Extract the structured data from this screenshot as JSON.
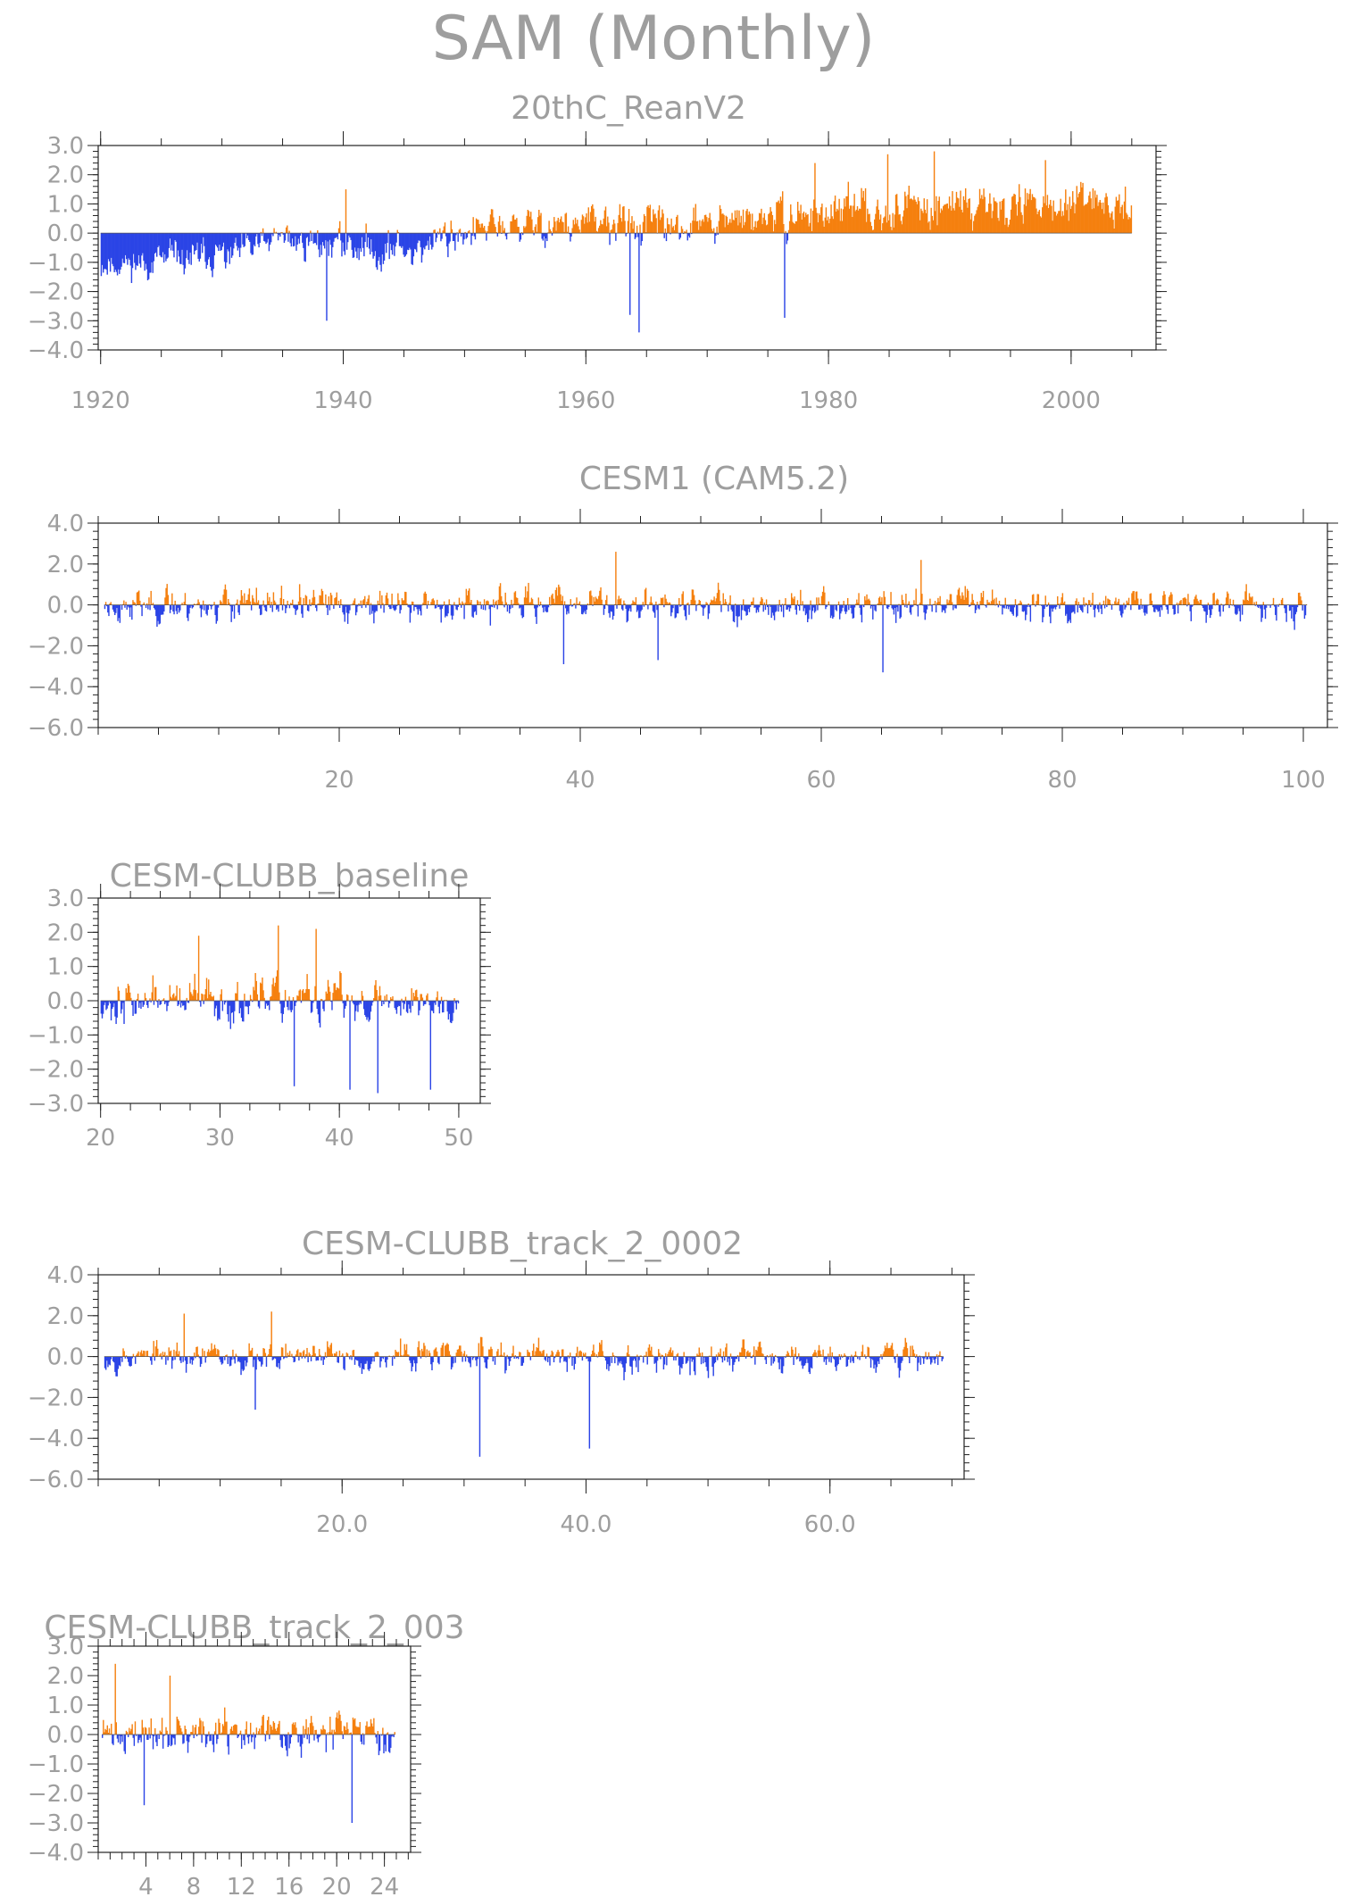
{
  "title": "SAM (Monthly)",
  "colors": {
    "positive": "#f5800f",
    "negative": "#2b44e6",
    "frame": "#222222",
    "text": "#9e9e9e"
  },
  "chart_data": [
    {
      "type": "bar",
      "title": "20thC_ReanV2",
      "xlim": [
        1919.8,
        2007
      ],
      "ylim": [
        -4.0,
        3.0
      ],
      "yticks": [
        3.0,
        2.0,
        1.0,
        0.0,
        -1.0,
        -2.0,
        -3.0,
        -4.0
      ],
      "ytick_labels": [
        "3.0",
        "2.0",
        "1.0",
        "0.0",
        "−1.0",
        "−2.0",
        "−3.0",
        "−4.0"
      ],
      "xticks": [
        1920,
        1940,
        1960,
        1980,
        2000
      ],
      "xtick_labels": [
        "1920",
        "1940",
        "1960",
        "1980",
        "2000"
      ],
      "x_range": [
        1920,
        2005
      ],
      "series_profile": [
        {
          "x": 1920,
          "mean": -1.1,
          "amp": 0.6
        },
        {
          "x": 1930,
          "mean": -0.8,
          "amp": 0.8
        },
        {
          "x": 1935,
          "mean": -0.2,
          "amp": 0.8
        },
        {
          "x": 1945,
          "mean": -0.6,
          "amp": 0.9
        },
        {
          "x": 1950,
          "mean": 0.1,
          "amp": 0.8
        },
        {
          "x": 1960,
          "mean": 0.3,
          "amp": 0.9
        },
        {
          "x": 1970,
          "mean": 0.3,
          "amp": 0.9
        },
        {
          "x": 1980,
          "mean": 0.7,
          "amp": 0.9
        },
        {
          "x": 1990,
          "mean": 1.0,
          "amp": 0.9
        },
        {
          "x": 2005,
          "mean": 0.9,
          "amp": 0.8
        }
      ],
      "extremes": [
        {
          "x": 1940.2,
          "y": 1.5
        },
        {
          "x": 1938.6,
          "y": -3.0
        },
        {
          "x": 1963.6,
          "y": -2.8
        },
        {
          "x": 1964.3,
          "y": -3.4
        },
        {
          "x": 1976.3,
          "y": -2.9
        },
        {
          "x": 1978.8,
          "y": 2.4
        },
        {
          "x": 1984.8,
          "y": 2.7
        },
        {
          "x": 1988.7,
          "y": 2.8
        },
        {
          "x": 1997.8,
          "y": 2.5
        }
      ],
      "bars_per_unit": 12,
      "seed": 11
    },
    {
      "type": "bar",
      "title": "CESM1 (CAM5.2)",
      "xlim": [
        0,
        102
      ],
      "ylim": [
        -6.0,
        4.0
      ],
      "yticks": [
        4.0,
        2.0,
        0.0,
        -2.0,
        -4.0,
        -6.0
      ],
      "ytick_labels": [
        "4.0",
        "2.0",
        "0.0",
        "−2.0",
        "−4.0",
        "−6.0"
      ],
      "xticks": [
        20,
        40,
        60,
        80,
        100
      ],
      "xtick_labels": [
        "20",
        "40",
        "60",
        "80",
        "100"
      ],
      "x_range": [
        0.5,
        100.3
      ],
      "series_profile": [
        {
          "x": 0,
          "mean": 0.0,
          "amp": 1.1
        },
        {
          "x": 100,
          "mean": 0.0,
          "amp": 1.1
        }
      ],
      "extremes": [
        {
          "x": 42.9,
          "y": 2.6
        },
        {
          "x": 68.2,
          "y": 2.2
        },
        {
          "x": 38.6,
          "y": -2.9
        },
        {
          "x": 65.1,
          "y": -3.3
        },
        {
          "x": 46.4,
          "y": -2.7
        }
      ],
      "bars_per_unit": 12,
      "seed": 23
    },
    {
      "type": "bar",
      "title": "CESM-CLUBB_baseline",
      "xlim": [
        19.8,
        51.8
      ],
      "ylim": [
        -3.0,
        3.0
      ],
      "yticks": [
        3.0,
        2.0,
        1.0,
        0.0,
        -1.0,
        -2.0,
        -3.0
      ],
      "ytick_labels": [
        "3.0",
        "2.0",
        "1.0",
        "0.0",
        "−1.0",
        "−2.0",
        "−3.0"
      ],
      "xticks": [
        20,
        30,
        40,
        50
      ],
      "xtick_labels": [
        "20",
        "30",
        "40",
        "50"
      ],
      "x_range": [
        20,
        50
      ],
      "series_profile": [
        {
          "x": 20,
          "mean": 0.0,
          "amp": 0.8
        },
        {
          "x": 50,
          "mean": 0.0,
          "amp": 0.8
        }
      ],
      "extremes": [
        {
          "x": 28.2,
          "y": 1.9
        },
        {
          "x": 34.8,
          "y": 2.2
        },
        {
          "x": 38.0,
          "y": 2.1
        },
        {
          "x": 36.2,
          "y": -2.5
        },
        {
          "x": 40.8,
          "y": -2.6
        },
        {
          "x": 43.2,
          "y": -2.7
        },
        {
          "x": 47.6,
          "y": -2.6
        }
      ],
      "bars_per_unit": 12,
      "seed": 37
    },
    {
      "type": "bar",
      "title": "CESM-CLUBB_track_2_0002",
      "xlim": [
        0,
        71
      ],
      "ylim": [
        -6.0,
        4.0
      ],
      "yticks": [
        4.0,
        2.0,
        0.0,
        -2.0,
        -4.0,
        -6.0
      ],
      "ytick_labels": [
        "4.0",
        "2.0",
        "0.0",
        "−2.0",
        "−4.0",
        "−6.0"
      ],
      "xticks": [
        20,
        40,
        60
      ],
      "xtick_labels": [
        "20.0",
        "40.0",
        "60.0"
      ],
      "x_range": [
        0.5,
        69.3
      ],
      "series_profile": [
        {
          "x": 0,
          "mean": 0.0,
          "amp": 1.0
        },
        {
          "x": 70,
          "mean": 0.0,
          "amp": 1.0
        }
      ],
      "extremes": [
        {
          "x": 31.2,
          "y": -4.9
        },
        {
          "x": 40.2,
          "y": -4.5
        },
        {
          "x": 7.0,
          "y": 2.1
        },
        {
          "x": 14.2,
          "y": 2.2
        },
        {
          "x": 12.8,
          "y": -2.6
        }
      ],
      "bars_per_unit": 12,
      "seed": 53
    },
    {
      "type": "bar",
      "title": "CESM-CLUBB_track_2_003",
      "xlim": [
        0,
        26.2
      ],
      "ylim": [
        -4.0,
        3.0
      ],
      "yticks": [
        3.0,
        2.0,
        1.0,
        0.0,
        -1.0,
        -2.0,
        -3.0,
        -4.0
      ],
      "ytick_labels": [
        "3.0",
        "2.0",
        "1.0",
        "0.0",
        "−1.0",
        "−2.0",
        "−3.0",
        "−4.0"
      ],
      "xticks": [
        4,
        8,
        12,
        16,
        20,
        24
      ],
      "xtick_labels": [
        "4",
        "8",
        "12",
        "16",
        "20",
        "24"
      ],
      "x_range": [
        0.3,
        24.9
      ],
      "series_profile": [
        {
          "x": 0,
          "mean": 0.0,
          "amp": 0.9
        },
        {
          "x": 25,
          "mean": 0.0,
          "amp": 0.9
        }
      ],
      "extremes": [
        {
          "x": 1.4,
          "y": 2.4
        },
        {
          "x": 21.2,
          "y": -3.0
        },
        {
          "x": 3.8,
          "y": -2.4
        },
        {
          "x": 6.0,
          "y": 2.0
        }
      ],
      "bars_per_unit": 12,
      "seed": 71
    }
  ]
}
